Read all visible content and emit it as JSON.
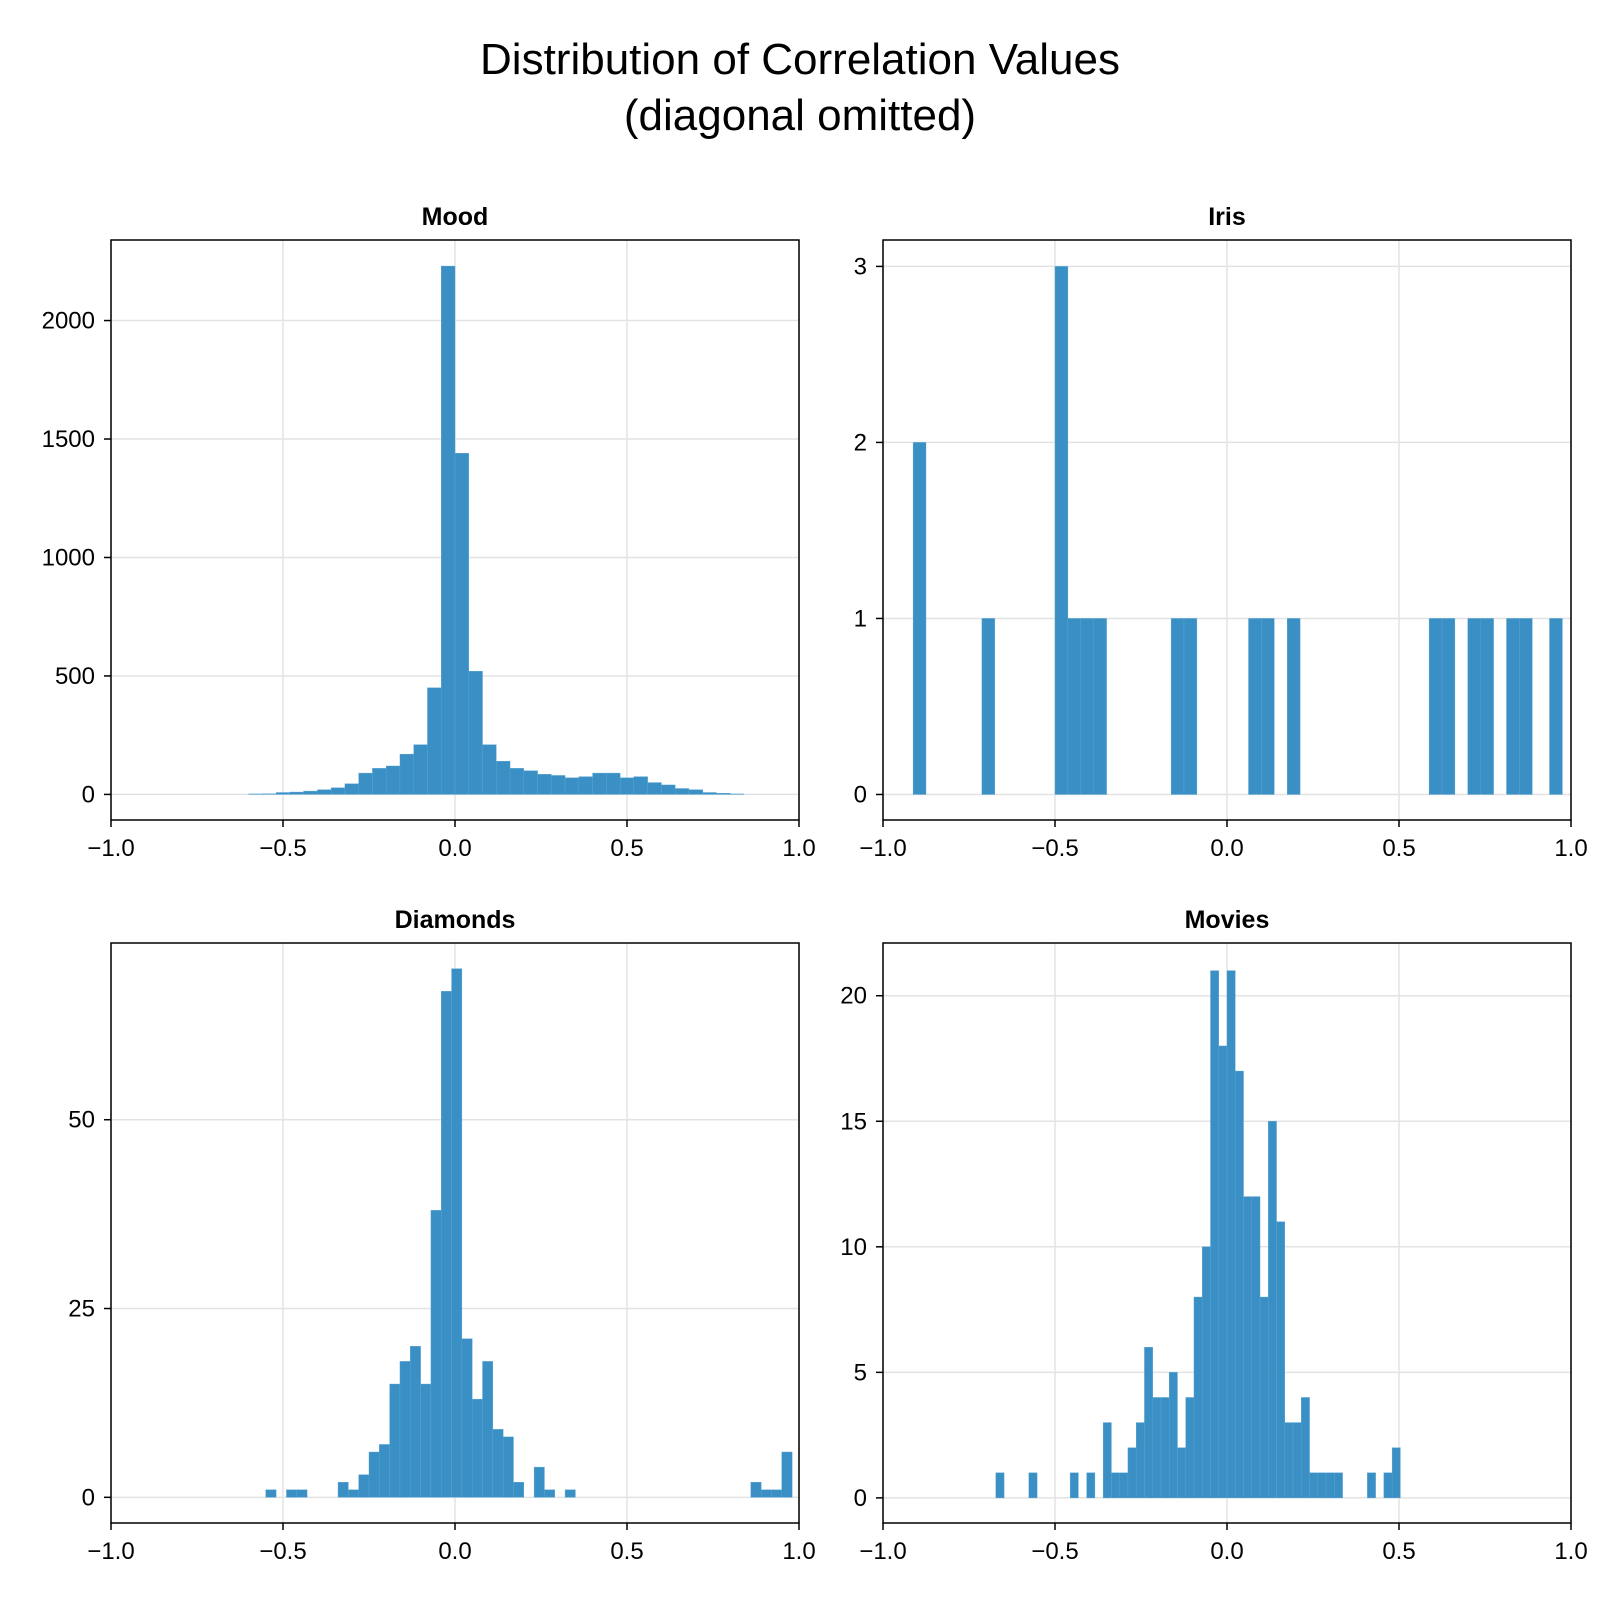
{
  "figure": {
    "title_line1": "Distribution of Correlation Values",
    "title_line2": "(diagonal omitted)"
  },
  "colors": {
    "bar": "#3A8FC4",
    "grid": "#e3e3e3",
    "axis": "#000000"
  },
  "chart_data": [
    {
      "type": "bar",
      "title": "Mood",
      "xlim": [
        -1.0,
        1.0
      ],
      "ylim": [
        -108,
        2340
      ],
      "xticks": [
        -1.0,
        -0.5,
        0.0,
        0.5,
        1.0
      ],
      "xtick_labels": [
        "−1.0",
        "−0.5",
        "0.0",
        "0.5",
        "1.0"
      ],
      "yticks": [
        0,
        500,
        1000,
        1500,
        2000
      ],
      "ytick_labels": [
        "0",
        "500",
        "1000",
        "1500",
        "2000"
      ],
      "bin_start": -0.6,
      "bin_width": 0.04,
      "values": [
        2,
        3,
        8,
        10,
        14,
        20,
        28,
        45,
        90,
        110,
        120,
        170,
        210,
        450,
        2230,
        1440,
        520,
        210,
        140,
        110,
        100,
        85,
        80,
        70,
        75,
        90,
        90,
        70,
        75,
        50,
        40,
        25,
        20,
        8,
        5,
        2
      ]
    },
    {
      "type": "bar",
      "title": "Iris",
      "xlim": [
        -1.0,
        1.0
      ],
      "ylim": [
        -0.145,
        3.15
      ],
      "xticks": [
        -1.0,
        -0.5,
        0.0,
        0.5,
        1.0
      ],
      "xtick_labels": [
        "−1.0",
        "−0.5",
        "0.0",
        "0.5",
        "1.0"
      ],
      "yticks": [
        0,
        1,
        2,
        3
      ],
      "ytick_labels": [
        "0",
        "1",
        "2",
        "3"
      ],
      "bin_width": 0.0375,
      "bars": [
        {
          "x": -0.9125,
          "v": 2
        },
        {
          "x": -0.7125,
          "v": 1
        },
        {
          "x": -0.5,
          "v": 3
        },
        {
          "x": -0.4625,
          "v": 1
        },
        {
          "x": -0.425,
          "v": 1
        },
        {
          "x": -0.3875,
          "v": 1
        },
        {
          "x": -0.1625,
          "v": 1
        },
        {
          "x": -0.125,
          "v": 1
        },
        {
          "x": 0.0625,
          "v": 1
        },
        {
          "x": 0.1,
          "v": 1
        },
        {
          "x": 0.175,
          "v": 1
        },
        {
          "x": 0.5875,
          "v": 1
        },
        {
          "x": 0.625,
          "v": 1
        },
        {
          "x": 0.7,
          "v": 1
        },
        {
          "x": 0.7375,
          "v": 1
        },
        {
          "x": 0.8125,
          "v": 1
        },
        {
          "x": 0.85,
          "v": 1
        },
        {
          "x": 0.9375,
          "v": 1
        }
      ]
    },
    {
      "type": "bar",
      "title": "Diamonds",
      "xlim": [
        -1.0,
        1.0
      ],
      "ylim": [
        -3.4,
        73.4
      ],
      "xticks": [
        -1.0,
        -0.5,
        0.0,
        0.5,
        1.0
      ],
      "xtick_labels": [
        "−1.0",
        "−0.5",
        "0.0",
        "0.5",
        "1.0"
      ],
      "yticks": [
        0,
        25,
        50
      ],
      "ytick_labels": [
        "0",
        "25",
        "50"
      ],
      "bin_width": 0.03,
      "bars": [
        {
          "x": -0.55,
          "v": 1
        },
        {
          "x": -0.49,
          "v": 1
        },
        {
          "x": -0.46,
          "v": 1
        },
        {
          "x": -0.34,
          "v": 2
        },
        {
          "x": -0.31,
          "v": 1
        },
        {
          "x": -0.28,
          "v": 3
        },
        {
          "x": -0.25,
          "v": 6
        },
        {
          "x": -0.22,
          "v": 7
        },
        {
          "x": -0.19,
          "v": 15
        },
        {
          "x": -0.16,
          "v": 18
        },
        {
          "x": -0.13,
          "v": 20
        },
        {
          "x": -0.1,
          "v": 15
        },
        {
          "x": -0.07,
          "v": 38
        },
        {
          "x": -0.04,
          "v": 67
        },
        {
          "x": -0.01,
          "v": 70
        },
        {
          "x": 0.02,
          "v": 21
        },
        {
          "x": 0.05,
          "v": 13
        },
        {
          "x": 0.08,
          "v": 18
        },
        {
          "x": 0.11,
          "v": 9
        },
        {
          "x": 0.14,
          "v": 8
        },
        {
          "x": 0.17,
          "v": 2
        },
        {
          "x": 0.23,
          "v": 4
        },
        {
          "x": 0.26,
          "v": 1
        },
        {
          "x": 0.32,
          "v": 1
        },
        {
          "x": 0.86,
          "v": 2
        },
        {
          "x": 0.89,
          "v": 1
        },
        {
          "x": 0.92,
          "v": 1
        },
        {
          "x": 0.95,
          "v": 6
        }
      ]
    },
    {
      "type": "bar",
      "title": "Movies",
      "xlim": [
        -1.0,
        1.0
      ],
      "ylim": [
        -1.0,
        22.1
      ],
      "xticks": [
        -1.0,
        -0.5,
        0.0,
        0.5,
        1.0
      ],
      "xtick_labels": [
        "−1.0",
        "−0.5",
        "0.0",
        "0.5",
        "1.0"
      ],
      "yticks": [
        0,
        5,
        10,
        15,
        20
      ],
      "ytick_labels": [
        "0",
        "5",
        "10",
        "15",
        "20"
      ],
      "bin_width": 0.024,
      "bars": [
        {
          "x": -0.672,
          "v": 1
        },
        {
          "x": -0.576,
          "v": 1
        },
        {
          "x": -0.456,
          "v": 1
        },
        {
          "x": -0.408,
          "v": 1
        },
        {
          "x": -0.36,
          "v": 3
        },
        {
          "x": -0.336,
          "v": 1
        },
        {
          "x": -0.312,
          "v": 1
        },
        {
          "x": -0.288,
          "v": 2
        },
        {
          "x": -0.264,
          "v": 3
        },
        {
          "x": -0.24,
          "v": 6
        },
        {
          "x": -0.216,
          "v": 4
        },
        {
          "x": -0.192,
          "v": 4
        },
        {
          "x": -0.168,
          "v": 5
        },
        {
          "x": -0.144,
          "v": 2
        },
        {
          "x": -0.12,
          "v": 4
        },
        {
          "x": -0.096,
          "v": 8
        },
        {
          "x": -0.072,
          "v": 10
        },
        {
          "x": -0.048,
          "v": 21
        },
        {
          "x": -0.024,
          "v": 18
        },
        {
          "x": 0.0,
          "v": 21
        },
        {
          "x": 0.024,
          "v": 17
        },
        {
          "x": 0.048,
          "v": 12
        },
        {
          "x": 0.072,
          "v": 12
        },
        {
          "x": 0.096,
          "v": 8
        },
        {
          "x": 0.12,
          "v": 15
        },
        {
          "x": 0.144,
          "v": 11
        },
        {
          "x": 0.168,
          "v": 3
        },
        {
          "x": 0.192,
          "v": 3
        },
        {
          "x": 0.216,
          "v": 4
        },
        {
          "x": 0.24,
          "v": 1
        },
        {
          "x": 0.264,
          "v": 1
        },
        {
          "x": 0.288,
          "v": 1
        },
        {
          "x": 0.312,
          "v": 1
        },
        {
          "x": 0.408,
          "v": 1
        },
        {
          "x": 0.456,
          "v": 1
        },
        {
          "x": 0.48,
          "v": 2
        }
      ]
    }
  ]
}
